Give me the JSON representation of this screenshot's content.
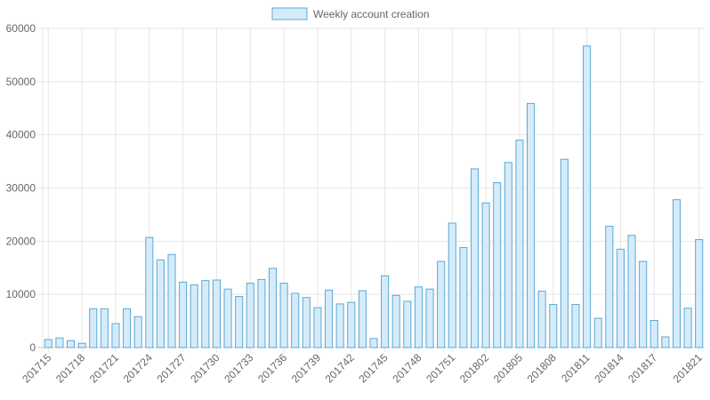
{
  "legend": {
    "label": "Weekly account creation"
  },
  "colors": {
    "bar_fill": "#d6ebf9",
    "bar_stroke": "#5aa9d6",
    "grid": "#e6e6e6",
    "axis_text": "#666666"
  },
  "chart_data": {
    "type": "bar",
    "legend_position": "top-center",
    "grid": true,
    "ylim": [
      0,
      60000
    ],
    "yticks": [
      0,
      10000,
      20000,
      30000,
      40000,
      50000,
      60000
    ],
    "categories": [
      "201715",
      "201716",
      "201717",
      "201718",
      "201719",
      "201720",
      "201721",
      "201722",
      "201723",
      "201724",
      "201725",
      "201726",
      "201727",
      "201728",
      "201729",
      "201730",
      "201731",
      "201732",
      "201733",
      "201734",
      "201735",
      "201736",
      "201737",
      "201738",
      "201739",
      "201740",
      "201741",
      "201742",
      "201743",
      "201744",
      "201745",
      "201746",
      "201747",
      "201748",
      "201749",
      "201750",
      "201751",
      "201752",
      "201801",
      "201802",
      "201803",
      "201804",
      "201805",
      "201806",
      "201807",
      "201808",
      "201809",
      "201810",
      "201811",
      "201812",
      "201813",
      "201814",
      "201815",
      "201816",
      "201817",
      "201818",
      "201819",
      "201820",
      "201821"
    ],
    "xtick_labels": [
      "201715",
      "201718",
      "201721",
      "201724",
      "201727",
      "201730",
      "201733",
      "201736",
      "201739",
      "201742",
      "201745",
      "201748",
      "201751",
      "201802",
      "201805",
      "201808",
      "201811",
      "201814",
      "201817",
      "201821"
    ],
    "series": [
      {
        "name": "Weekly account creation",
        "values": [
          1500,
          1800,
          1300,
          800,
          7300,
          7300,
          4500,
          7300,
          5800,
          20700,
          16500,
          17500,
          12300,
          11800,
          12600,
          12700,
          11000,
          9600,
          12100,
          12800,
          14900,
          12100,
          10200,
          9400,
          7500,
          10800,
          8200,
          8500,
          10700,
          1700,
          13500,
          9800,
          8700,
          11400,
          11000,
          16200,
          23400,
          18800,
          33600,
          27200,
          31000,
          34800,
          39000,
          45900,
          10600,
          8100,
          35400,
          8100,
          56700,
          5500,
          22800,
          18500,
          21100,
          16200,
          5100,
          2000,
          27800,
          7400,
          20300
        ]
      }
    ]
  }
}
